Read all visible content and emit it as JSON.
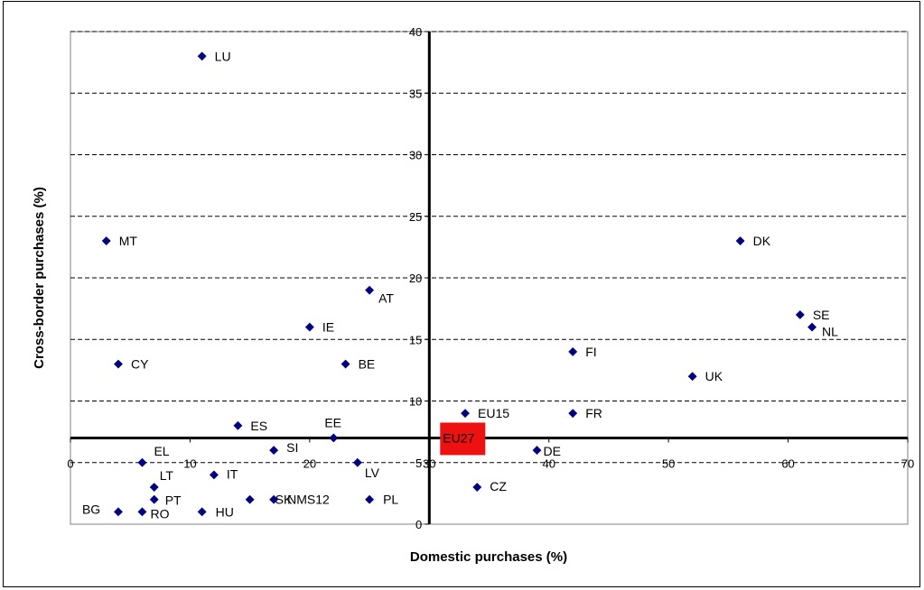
{
  "chart_data": {
    "type": "scatter",
    "xlabel": "Domestic purchases (%)",
    "ylabel": "Cross-border purchases (%)",
    "xlim": [
      0,
      70
    ],
    "ylim": [
      0,
      40
    ],
    "x_ticks": [
      "0",
      "10",
      "20",
      "30",
      "40",
      "50",
      "60",
      "70"
    ],
    "y_ticks": [
      "0",
      "5",
      "10",
      "15",
      "20",
      "25",
      "30",
      "35",
      "40"
    ],
    "grid": "horizontal dashed",
    "crosshair": {
      "x": 30,
      "y": 7
    },
    "marker_color": "#000080",
    "highlight_color": "#ee1111",
    "highlight_label": "EU27",
    "points": [
      {
        "label": "LU",
        "x": 11,
        "y": 38
      },
      {
        "label": "MT",
        "x": 3,
        "y": 23
      },
      {
        "label": "DK",
        "x": 56,
        "y": 23
      },
      {
        "label": "AT",
        "x": 25,
        "y": 19
      },
      {
        "label": "SE",
        "x": 61,
        "y": 17
      },
      {
        "label": "IE",
        "x": 20,
        "y": 16
      },
      {
        "label": "NL",
        "x": 62,
        "y": 16
      },
      {
        "label": "FI",
        "x": 42,
        "y": 14
      },
      {
        "label": "CY",
        "x": 4,
        "y": 13
      },
      {
        "label": "BE",
        "x": 23,
        "y": 13
      },
      {
        "label": "UK",
        "x": 52,
        "y": 12
      },
      {
        "label": "EU15",
        "x": 33,
        "y": 9
      },
      {
        "label": "FR",
        "x": 42,
        "y": 9
      },
      {
        "label": "ES",
        "x": 14,
        "y": 8
      },
      {
        "label": "EE",
        "x": 22,
        "y": 7
      },
      {
        "label": "SI",
        "x": 17,
        "y": 6
      },
      {
        "label": "DE",
        "x": 39,
        "y": 6
      },
      {
        "label": "EL",
        "x": 6,
        "y": 5
      },
      {
        "label": "LV",
        "x": 24,
        "y": 5
      },
      {
        "label": "IT",
        "x": 12,
        "y": 4
      },
      {
        "label": "CZ",
        "x": 34,
        "y": 3
      },
      {
        "label": "LT",
        "x": 7,
        "y": 3
      },
      {
        "label": "PT",
        "x": 7,
        "y": 2
      },
      {
        "label": "SK",
        "x": 15,
        "y": 2
      },
      {
        "label": "NMS12",
        "x": 17,
        "y": 2
      },
      {
        "label": "PL",
        "x": 25,
        "y": 2
      },
      {
        "label": "BG",
        "x": 4,
        "y": 1
      },
      {
        "label": "RO",
        "x": 6,
        "y": 1
      },
      {
        "label": "HU",
        "x": 11,
        "y": 1
      }
    ]
  }
}
